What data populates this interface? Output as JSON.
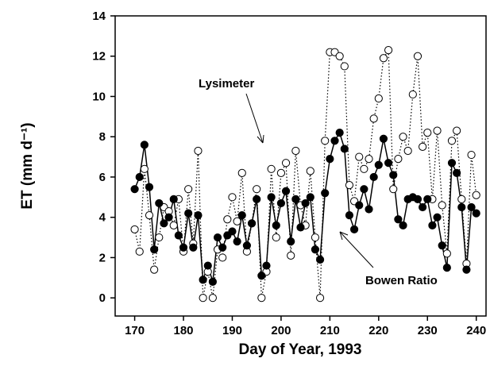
{
  "chart_data": {
    "type": "line",
    "xlabel": "Day of Year, 1993",
    "ylabel": "ET (mm d⁻¹)",
    "x": [
      170,
      171,
      172,
      173,
      174,
      175,
      176,
      177,
      178,
      179,
      180,
      181,
      182,
      183,
      184,
      185,
      186,
      187,
      188,
      189,
      190,
      191,
      192,
      193,
      194,
      195,
      196,
      197,
      198,
      199,
      200,
      201,
      202,
      203,
      204,
      205,
      206,
      207,
      208,
      209,
      210,
      211,
      212,
      213,
      214,
      215,
      216,
      217,
      218,
      219,
      220,
      221,
      222,
      223,
      224,
      225,
      226,
      227,
      228,
      229,
      230,
      231,
      232,
      233,
      234,
      235,
      236,
      237,
      238,
      239,
      240
    ],
    "series": [
      {
        "name": "Lysimeter",
        "color": "#000000",
        "marker_fill": "#ffffff",
        "dotted": true,
        "values": [
          3.4,
          2.3,
          6.4,
          4.1,
          1.4,
          3.0,
          4.5,
          4.3,
          3.6,
          4.9,
          2.3,
          5.4,
          2.7,
          7.3,
          0.0,
          1.3,
          0.0,
          2.4,
          2.0,
          3.9,
          5.0,
          3.8,
          6.2,
          2.3,
          3.7,
          5.4,
          0.0,
          1.3,
          6.4,
          3.0,
          6.2,
          6.7,
          2.1,
          7.3,
          4.6,
          3.6,
          6.3,
          3.0,
          0.0,
          7.8,
          12.2,
          12.2,
          12.0,
          11.5,
          5.6,
          4.8,
          7.0,
          6.4,
          6.9,
          8.9,
          9.9,
          11.9,
          12.3,
          5.4,
          6.9,
          8.0,
          7.3,
          10.1,
          12.0,
          7.5,
          8.2,
          4.9,
          8.3,
          4.6,
          2.2,
          7.8,
          8.3,
          4.9,
          1.7,
          7.1,
          5.1
        ]
      },
      {
        "name": "Bowen Ratio",
        "color": "#000000",
        "marker_fill": "#000000",
        "dotted": false,
        "values": [
          5.4,
          6.0,
          7.6,
          5.5,
          2.4,
          4.7,
          3.7,
          4.0,
          4.9,
          3.1,
          2.5,
          4.2,
          2.5,
          4.1,
          0.9,
          1.6,
          0.8,
          3.0,
          2.5,
          3.1,
          3.3,
          2.8,
          4.1,
          2.6,
          3.7,
          4.9,
          1.1,
          1.6,
          5.0,
          3.6,
          4.7,
          5.3,
          2.8,
          4.9,
          3.5,
          4.7,
          5.0,
          2.4,
          1.9,
          5.2,
          6.9,
          7.8,
          8.2,
          7.4,
          4.1,
          3.4,
          4.6,
          5.4,
          4.4,
          6.0,
          6.6,
          7.9,
          6.7,
          6.1,
          3.9,
          3.6,
          4.9,
          5.0,
          4.9,
          4.5,
          4.9,
          3.6,
          4.0,
          2.6,
          1.5,
          6.7,
          6.2,
          4.5,
          1.4,
          4.5,
          4.2
        ]
      }
    ],
    "xlim": [
      166,
      242
    ],
    "xticks": [
      170,
      180,
      190,
      200,
      210,
      220,
      230,
      240
    ],
    "ylim": [
      -0.9,
      14
    ],
    "yticks": [
      0,
      2,
      4,
      6,
      8,
      10,
      12,
      14
    ]
  }
}
